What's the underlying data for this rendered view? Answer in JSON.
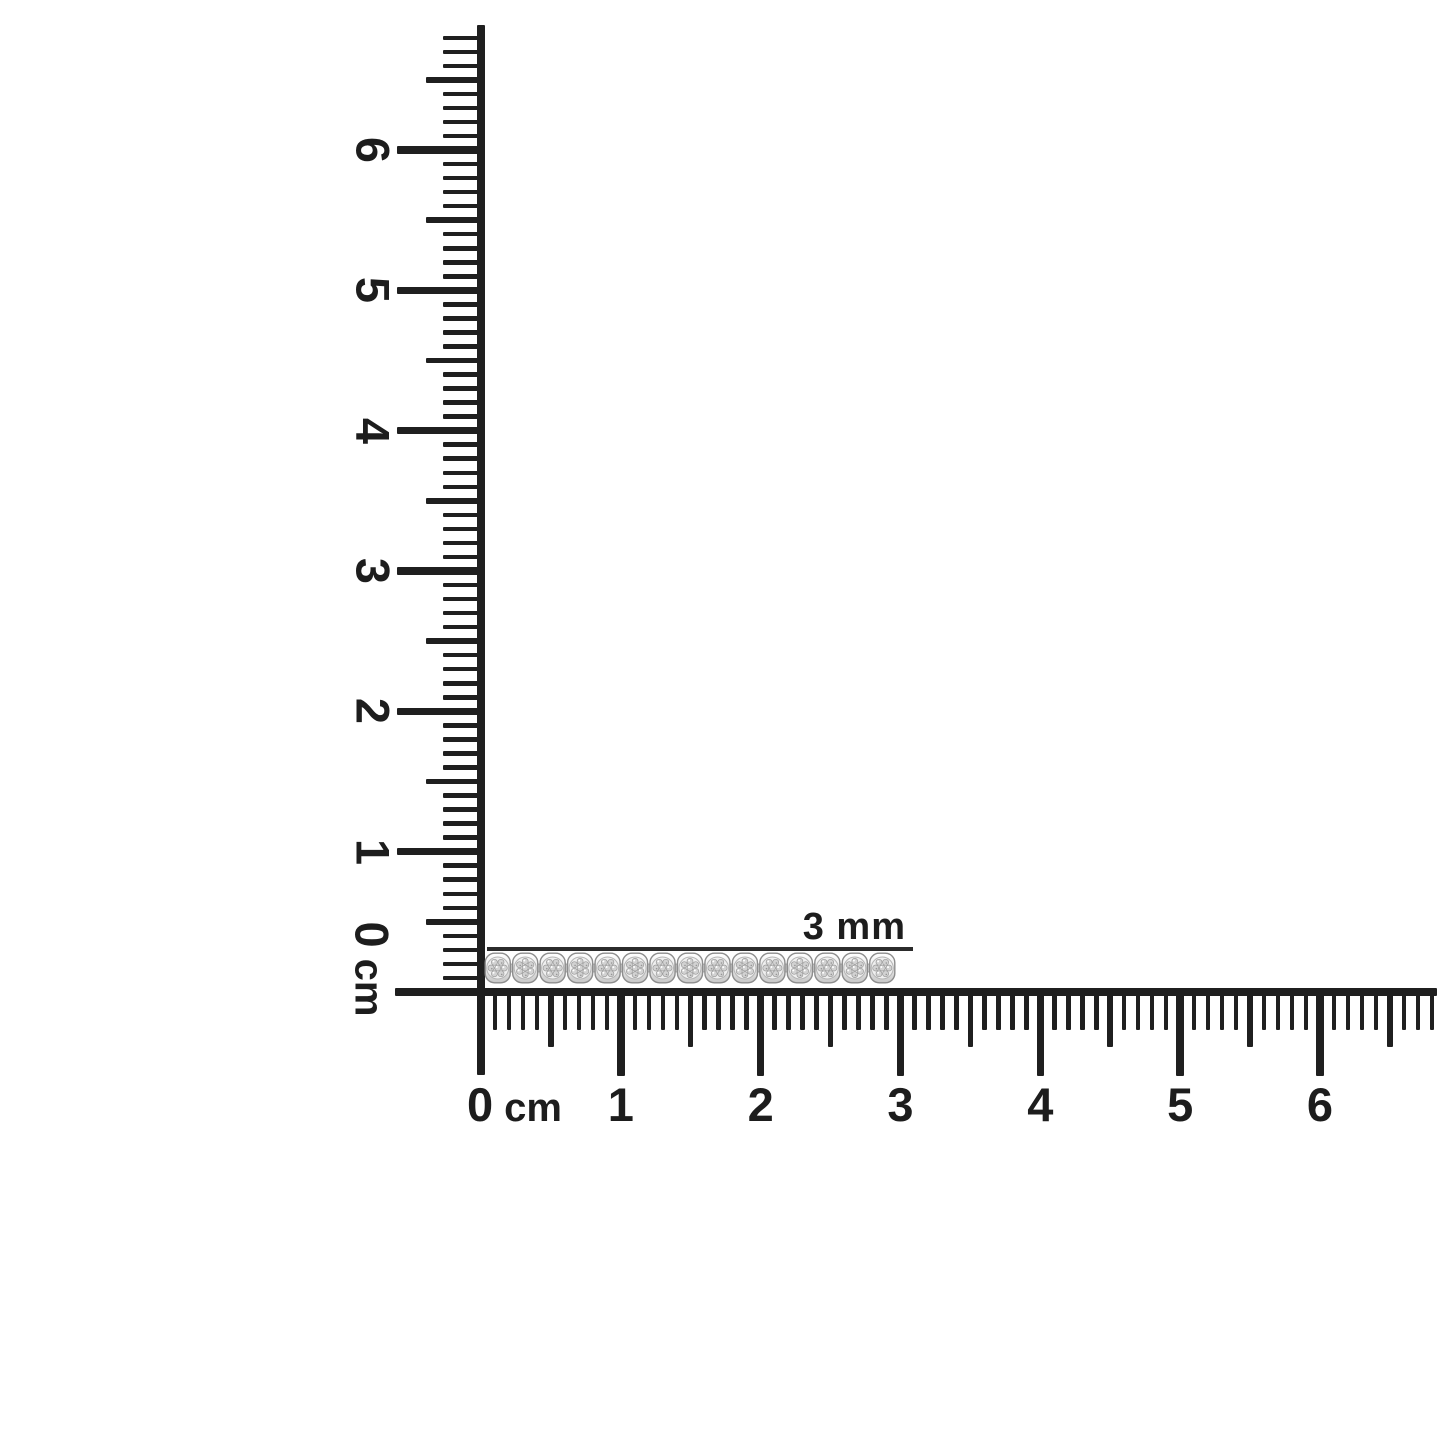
{
  "scene": {
    "description": "Diamond pave tennis bracelet segment photographed against corner centimeter rulers",
    "background_color": "#ffffff"
  },
  "annotation": {
    "label": "3 mm"
  },
  "vertical_ruler": {
    "unit": "cm",
    "zero_label": "0",
    "numbers": [
      "1",
      "2",
      "3",
      "4",
      "5",
      "6"
    ],
    "ticks_per_cm": 10,
    "minor_tick_count": 68
  },
  "horizontal_ruler": {
    "unit": "cm",
    "zero_label": "0",
    "numbers": [
      "1",
      "2",
      "3",
      "4",
      "5",
      "6"
    ],
    "ticks_per_cm": 10,
    "minor_tick_count": 68
  },
  "bracelet": {
    "link_count": 15,
    "stones_per_link": 7
  },
  "colors": {
    "ink": "#1f1f1f",
    "metal_edge": "#8d8d8d",
    "metal_light": "#ffffff",
    "metal_mid": "#ececec",
    "metal_dark": "#c6c6c6",
    "pave_stone": "#d2d2d2",
    "pave_stone_edge": "#9a9a9a"
  }
}
